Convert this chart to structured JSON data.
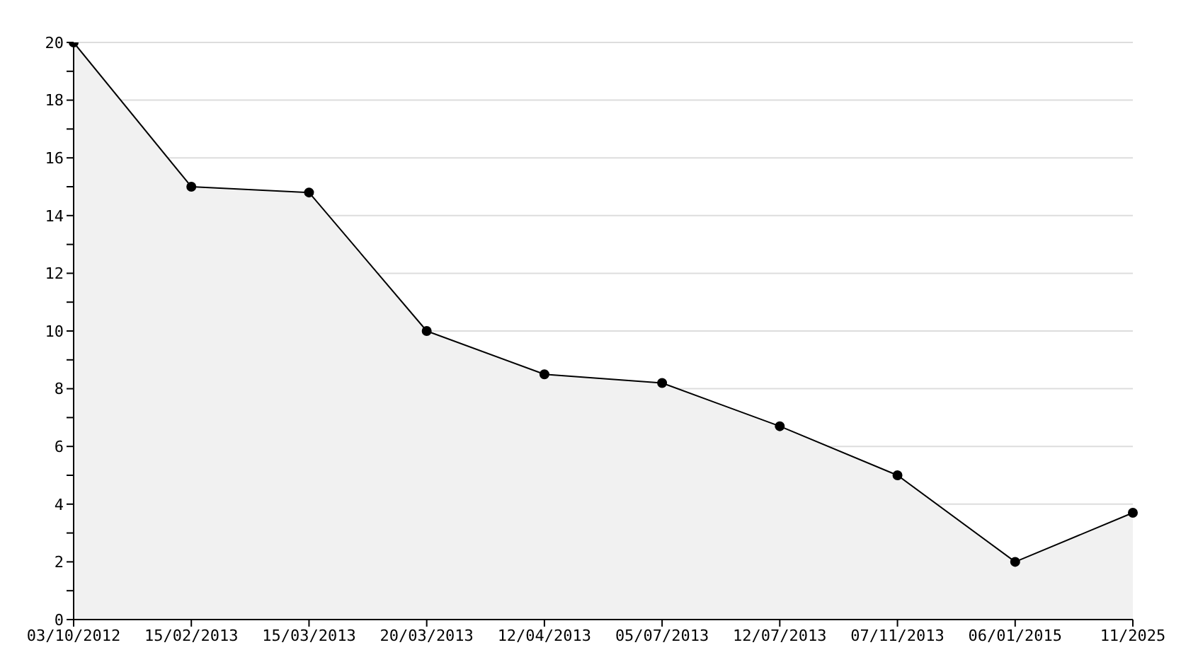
{
  "chart_data": {
    "type": "area",
    "categories": [
      "03/10/2012",
      "15/02/2013",
      "15/03/2013",
      "20/03/2013",
      "12/04/2013",
      "05/07/2013",
      "12/07/2013",
      "07/11/2013",
      "06/01/2015",
      "11/2025"
    ],
    "series": [
      {
        "color": "#000000",
        "values": [
          20,
          15,
          14.8,
          10,
          8.5,
          8.2,
          6.7,
          5,
          2,
          3.7
        ]
      }
    ],
    "ylim": [
      0,
      20
    ],
    "yticks": [
      0,
      {
        "value": 1,
        "label": null
      },
      2,
      {
        "value": 3,
        "label": null
      },
      4,
      {
        "value": 5,
        "label": null
      },
      6,
      {
        "value": 7,
        "label": null
      },
      8,
      {
        "value": 9,
        "label": null
      },
      10,
      {
        "value": 11,
        "label": null
      },
      12,
      {
        "value": 13,
        "label": null
      },
      14,
      {
        "value": 15,
        "label": null
      },
      16,
      {
        "value": 17,
        "label": null
      },
      18,
      {
        "value": 19,
        "label": null
      },
      20
    ],
    "grid": "y",
    "marker": "circle",
    "line_style": "solid",
    "legend": false
  }
}
